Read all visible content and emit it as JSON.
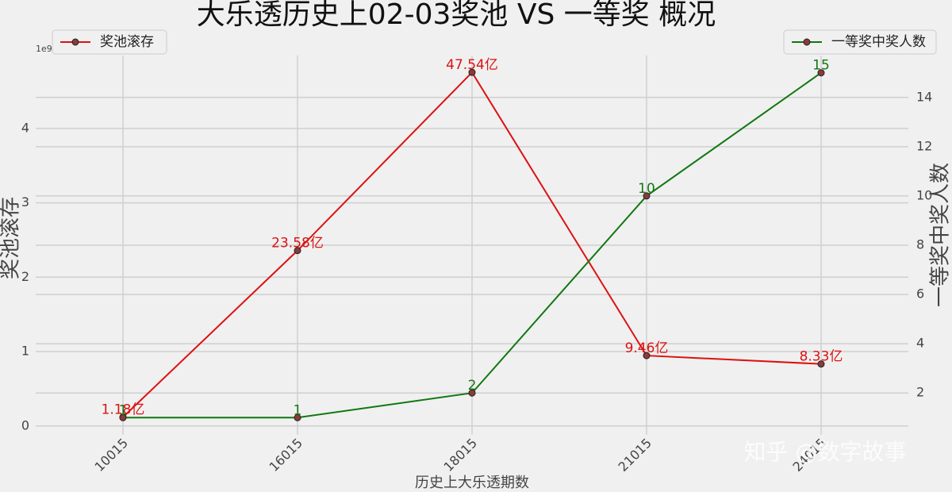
{
  "chart_data": {
    "type": "line",
    "title": "大乐透历史上02-03奖池 VS 一等奖 概况",
    "xlabel": "历史上大乐透期数",
    "ylabel": "奖池滚存",
    "y2label": "一等奖中奖人数",
    "y_offset_label": "1e9",
    "watermark": "知乎 @数字故事",
    "categories": [
      "10015",
      "16015",
      "18015",
      "21015",
      "24015"
    ],
    "series": [
      {
        "name": "奖池滚存",
        "color": "#dd1111",
        "values": [
          0.118,
          2.358,
          4.754,
          0.946,
          0.833
        ],
        "value_labels": [
          "1.18亿",
          "23.58亿",
          "47.54亿",
          "9.46亿",
          "8.33亿"
        ],
        "legend": "upper left"
      },
      {
        "name": "一等奖中奖人数",
        "color": "#117711",
        "axis": "y2",
        "values": [
          1,
          1,
          2,
          10,
          15
        ],
        "legend": "upper right"
      }
    ],
    "ylim": [
      -0.12,
      4.98
    ],
    "yticks": [
      0,
      1,
      2,
      3,
      4
    ],
    "y2lim": [
      0.3,
      15.7
    ],
    "y2ticks": [
      2,
      4,
      6,
      8,
      10,
      12,
      14
    ],
    "grid": true
  }
}
